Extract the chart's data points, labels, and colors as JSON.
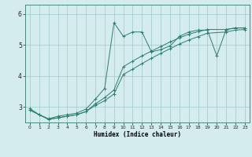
{
  "xlabel": "Humidex (Indice chaleur)",
  "background_color": "#d4eced",
  "grid_color": "#a0c8c8",
  "line_color": "#2e7d6e",
  "xlim": [
    -0.5,
    23.5
  ],
  "ylim": [
    2.5,
    6.3
  ],
  "yticks": [
    3,
    4,
    5,
    6
  ],
  "xticks": [
    0,
    1,
    2,
    3,
    4,
    5,
    6,
    7,
    8,
    9,
    10,
    11,
    12,
    13,
    14,
    15,
    16,
    17,
    18,
    19,
    20,
    21,
    22,
    23
  ],
  "line1_x": [
    0,
    1,
    2,
    3,
    4,
    5,
    6,
    7,
    8,
    9,
    10,
    11,
    12,
    13,
    14,
    15,
    16,
    17,
    18,
    19,
    20,
    21,
    22,
    23
  ],
  "line1_y": [
    2.95,
    2.75,
    2.62,
    2.7,
    2.75,
    2.8,
    2.93,
    3.25,
    3.6,
    5.72,
    5.28,
    5.42,
    5.42,
    4.78,
    4.85,
    4.97,
    5.28,
    5.42,
    5.48,
    5.48,
    4.65,
    5.5,
    5.55,
    5.55
  ],
  "line2_x": [
    0,
    1,
    2,
    3,
    4,
    5,
    6,
    7,
    8,
    9,
    10,
    11,
    12,
    13,
    14,
    15,
    16,
    17,
    18,
    19,
    21,
    22,
    23
  ],
  "line2_y": [
    2.9,
    2.75,
    2.6,
    2.65,
    2.7,
    2.75,
    2.85,
    3.1,
    3.3,
    3.55,
    4.3,
    4.48,
    4.65,
    4.8,
    4.95,
    5.1,
    5.23,
    5.35,
    5.43,
    5.5,
    5.5,
    5.55,
    5.55
  ],
  "line3_x": [
    0,
    1,
    2,
    3,
    4,
    5,
    6,
    7,
    8,
    9,
    10,
    11,
    12,
    13,
    14,
    15,
    16,
    17,
    18,
    19,
    21,
    22,
    23
  ],
  "line3_y": [
    2.9,
    2.75,
    2.6,
    2.65,
    2.7,
    2.75,
    2.85,
    3.05,
    3.2,
    3.42,
    4.05,
    4.22,
    4.4,
    4.57,
    4.73,
    4.88,
    5.03,
    5.16,
    5.27,
    5.38,
    5.42,
    5.48,
    5.5
  ]
}
